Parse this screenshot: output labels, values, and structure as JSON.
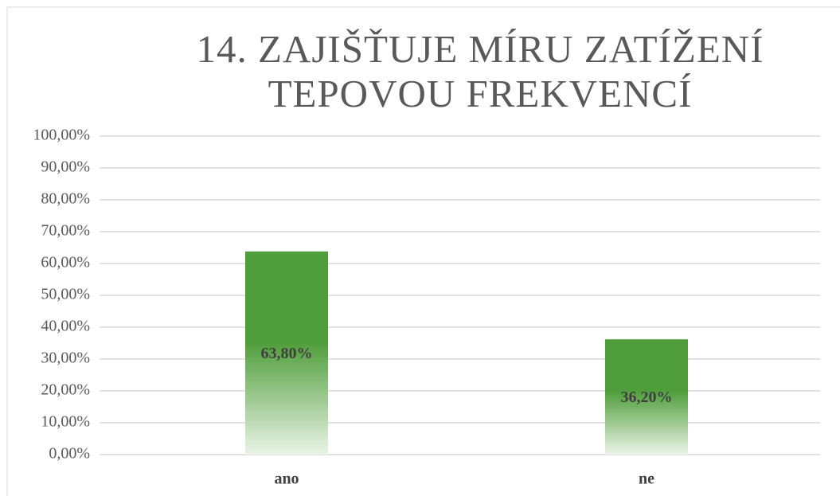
{
  "chart_data": {
    "type": "bar",
    "title": "14. ZAJIŠŤUJE MÍRU ZATÍŽENÍ TEPOVOU FREKVENCÍ",
    "categories": [
      "ano",
      "ne"
    ],
    "values": [
      63.8,
      36.2
    ],
    "value_labels": [
      "63,80%",
      "36,20%"
    ],
    "color": "#509e3b",
    "ylim": [
      0,
      100
    ],
    "yticks": [
      {
        "value": 0,
        "label": "0,00%"
      },
      {
        "value": 10,
        "label": "10,00%"
      },
      {
        "value": 20,
        "label": "20,00%"
      },
      {
        "value": 30,
        "label": "30,00%"
      },
      {
        "value": 40,
        "label": "40,00%"
      },
      {
        "value": 50,
        "label": "50,00%"
      },
      {
        "value": 60,
        "label": "60,00%"
      },
      {
        "value": 70,
        "label": "70,00%"
      },
      {
        "value": 80,
        "label": "80,00%"
      },
      {
        "value": 90,
        "label": "90,00%"
      },
      {
        "value": 100,
        "label": "100,00%"
      }
    ],
    "grid": true
  }
}
